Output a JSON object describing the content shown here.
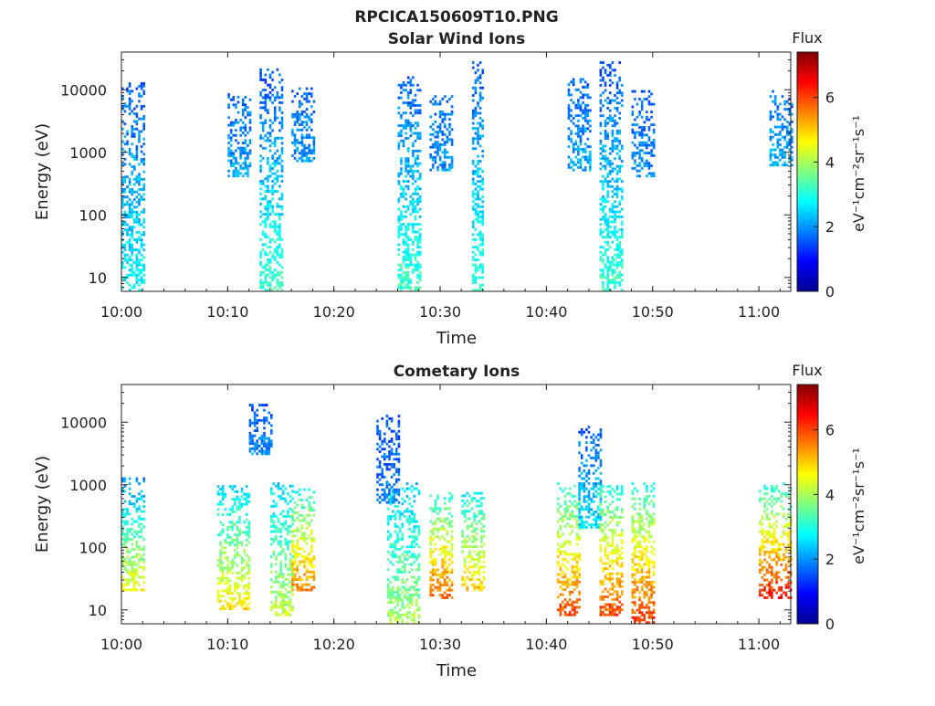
{
  "figure_title": "RPCICA150609T10.PNG",
  "colorbar": {
    "title": "Flux",
    "unit_label": "eV⁻¹cm⁻²sr⁻¹s⁻¹",
    "ticks": [
      "0",
      "2",
      "4",
      "6"
    ],
    "range": [
      0,
      7.4
    ],
    "colormap": [
      "#00008f",
      "#0000ff",
      "#0080ff",
      "#00ffff",
      "#80ff80",
      "#ffff00",
      "#ff8000",
      "#ff0000",
      "#800000"
    ]
  },
  "chart_data": [
    {
      "type": "heatmap",
      "title": "Solar Wind Ions",
      "xlabel": "Time",
      "ylabel": "Energy (eV)",
      "x_ticks": [
        "10:00",
        "10:10",
        "10:20",
        "10:30",
        "10:40",
        "10:50",
        "11:00"
      ],
      "y_ticks": [
        "10",
        "100",
        "1000",
        "10000"
      ],
      "y_scale": "log",
      "xlim": [
        "10:00",
        "11:03"
      ],
      "ylim": [
        6,
        40000
      ],
      "bursts": [
        {
          "t0": "10:00",
          "t1": "10:02",
          "emin": 6,
          "emax": 12000,
          "flux_low": 2.8,
          "flux_high": 1.6
        },
        {
          "t0": "10:10",
          "t1": "10:12",
          "emin": 400,
          "emax": 8000,
          "flux_low": 2.2,
          "flux_high": 1.6
        },
        {
          "t0": "10:13",
          "t1": "10:15",
          "emin": 6,
          "emax": 20000,
          "flux_low": 3.2,
          "flux_high": 1.5
        },
        {
          "t0": "10:16",
          "t1": "10:18",
          "emin": 700,
          "emax": 10000,
          "flux_low": 2.0,
          "flux_high": 1.7
        },
        {
          "t0": "10:26",
          "t1": "10:28",
          "emin": 6,
          "emax": 15000,
          "flux_low": 3.2,
          "flux_high": 1.6
        },
        {
          "t0": "10:29",
          "t1": "10:31",
          "emin": 500,
          "emax": 9000,
          "flux_low": 2.0,
          "flux_high": 1.7
        },
        {
          "t0": "10:33",
          "t1": "10:34",
          "emin": 6,
          "emax": 26000,
          "flux_low": 3.2,
          "flux_high": 1.5
        },
        {
          "t0": "10:42",
          "t1": "10:44",
          "emin": 500,
          "emax": 14000,
          "flux_low": 2.2,
          "flux_high": 1.6
        },
        {
          "t0": "10:45",
          "t1": "10:47",
          "emin": 6,
          "emax": 26000,
          "flux_low": 3.2,
          "flux_high": 1.5
        },
        {
          "t0": "10:48",
          "t1": "10:50",
          "emin": 400,
          "emax": 9000,
          "flux_low": 2.0,
          "flux_high": 1.6
        },
        {
          "t0": "11:01",
          "t1": "11:03",
          "emin": 600,
          "emax": 9000,
          "flux_low": 2.2,
          "flux_high": 1.7
        }
      ]
    },
    {
      "type": "heatmap",
      "title": "Cometary Ions",
      "xlabel": "Time",
      "ylabel": "Energy (eV)",
      "x_ticks": [
        "10:00",
        "10:10",
        "10:20",
        "10:30",
        "10:40",
        "10:50",
        "11:00"
      ],
      "y_ticks": [
        "10",
        "100",
        "1000",
        "10000"
      ],
      "y_scale": "log",
      "xlim": [
        "10:00",
        "11:03"
      ],
      "ylim": [
        6,
        40000
      ],
      "bursts": [
        {
          "t0": "10:00",
          "t1": "10:02",
          "emin": 20,
          "emax": 1200,
          "flux_low": 4.6,
          "flux_high": 2.0
        },
        {
          "t0": "10:09",
          "t1": "10:12",
          "emin": 10,
          "emax": 900,
          "flux_low": 4.8,
          "flux_high": 2.5
        },
        {
          "t0": "10:12",
          "t1": "10:14",
          "emin": 3000,
          "emax": 18000,
          "flux_low": 2.0,
          "flux_high": 1.5
        },
        {
          "t0": "10:14",
          "t1": "10:16",
          "emin": 8,
          "emax": 1000,
          "flux_low": 4.2,
          "flux_high": 2.5
        },
        {
          "t0": "10:16",
          "t1": "10:18",
          "emin": 20,
          "emax": 800,
          "flux_low": 5.6,
          "flux_high": 3.0
        },
        {
          "t0": "10:24",
          "t1": "10:26",
          "emin": 500,
          "emax": 12000,
          "flux_low": 1.8,
          "flux_high": 1.5
        },
        {
          "t0": "10:25",
          "t1": "10:28",
          "emin": 6,
          "emax": 1000,
          "flux_low": 4.0,
          "flux_high": 2.4
        },
        {
          "t0": "10:29",
          "t1": "10:31",
          "emin": 15,
          "emax": 700,
          "flux_low": 5.8,
          "flux_high": 3.0
        },
        {
          "t0": "10:32",
          "t1": "10:34",
          "emin": 20,
          "emax": 700,
          "flux_low": 5.0,
          "flux_high": 2.8
        },
        {
          "t0": "10:41",
          "t1": "10:43",
          "emin": 8,
          "emax": 1000,
          "flux_low": 6.0,
          "flux_high": 3.0
        },
        {
          "t0": "10:43",
          "t1": "10:45",
          "emin": 200,
          "emax": 8000,
          "flux_low": 2.6,
          "flux_high": 1.6
        },
        {
          "t0": "10:45",
          "t1": "10:47",
          "emin": 8,
          "emax": 900,
          "flux_low": 6.0,
          "flux_high": 3.0
        },
        {
          "t0": "10:48",
          "t1": "10:50",
          "emin": 6,
          "emax": 1000,
          "flux_low": 6.2,
          "flux_high": 3.0
        },
        {
          "t0": "11:00",
          "t1": "11:03",
          "emin": 15,
          "emax": 1000,
          "flux_low": 6.4,
          "flux_high": 3.0
        }
      ]
    }
  ]
}
